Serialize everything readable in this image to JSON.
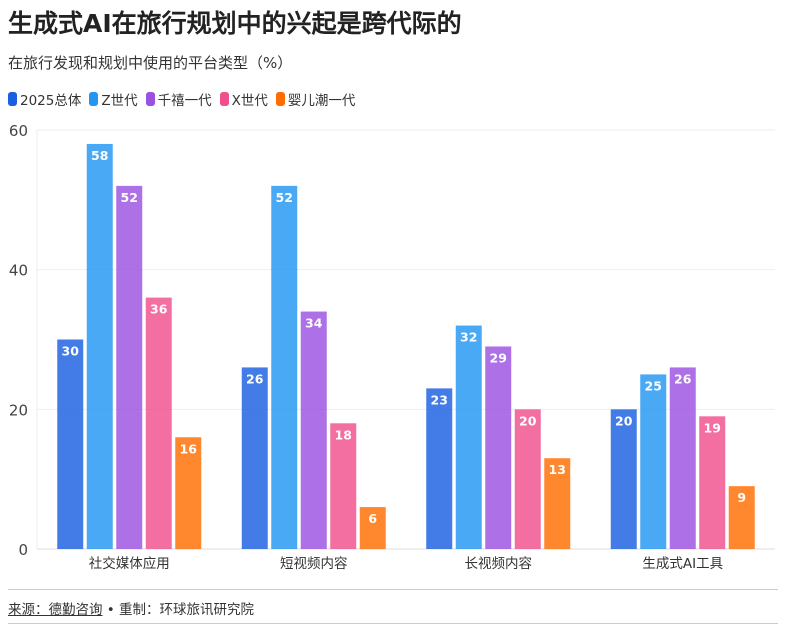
{
  "title": "生成式AI在旅行规划中的兴起是跨代际的",
  "subtitle": "在旅行发现和规划中使用的平台类型（%）",
  "footer": {
    "source": "来源：德勤咨询",
    "separator": " • ",
    "credit": "重制：环球旅讯研究院"
  },
  "chart_data": {
    "type": "bar",
    "title": "生成式AI在旅行规划中的兴起是跨代际的",
    "categories": [
      "社交媒体应用",
      "短视频内容",
      "长视频内容",
      "生成式AI工具"
    ],
    "series": [
      {
        "name": "2025总体",
        "color": "#1a5fe0",
        "values": [
          30,
          26,
          23,
          20
        ]
      },
      {
        "name": "Z世代",
        "color": "#2196f3",
        "values": [
          58,
          52,
          32,
          25
        ]
      },
      {
        "name": "千禧一代",
        "color": "#9b51e0",
        "values": [
          52,
          34,
          29,
          26
        ]
      },
      {
        "name": "X世代",
        "color": "#f04e8c",
        "values": [
          36,
          18,
          20,
          19
        ]
      },
      {
        "name": "婴儿潮一代",
        "color": "#ff6d00",
        "values": [
          16,
          6,
          13,
          9
        ]
      }
    ],
    "ylim": [
      0,
      60
    ],
    "yticks": [
      0,
      20,
      40,
      60
    ],
    "grid": true,
    "legend": "top-left",
    "xlabel": "",
    "ylabel": ""
  }
}
